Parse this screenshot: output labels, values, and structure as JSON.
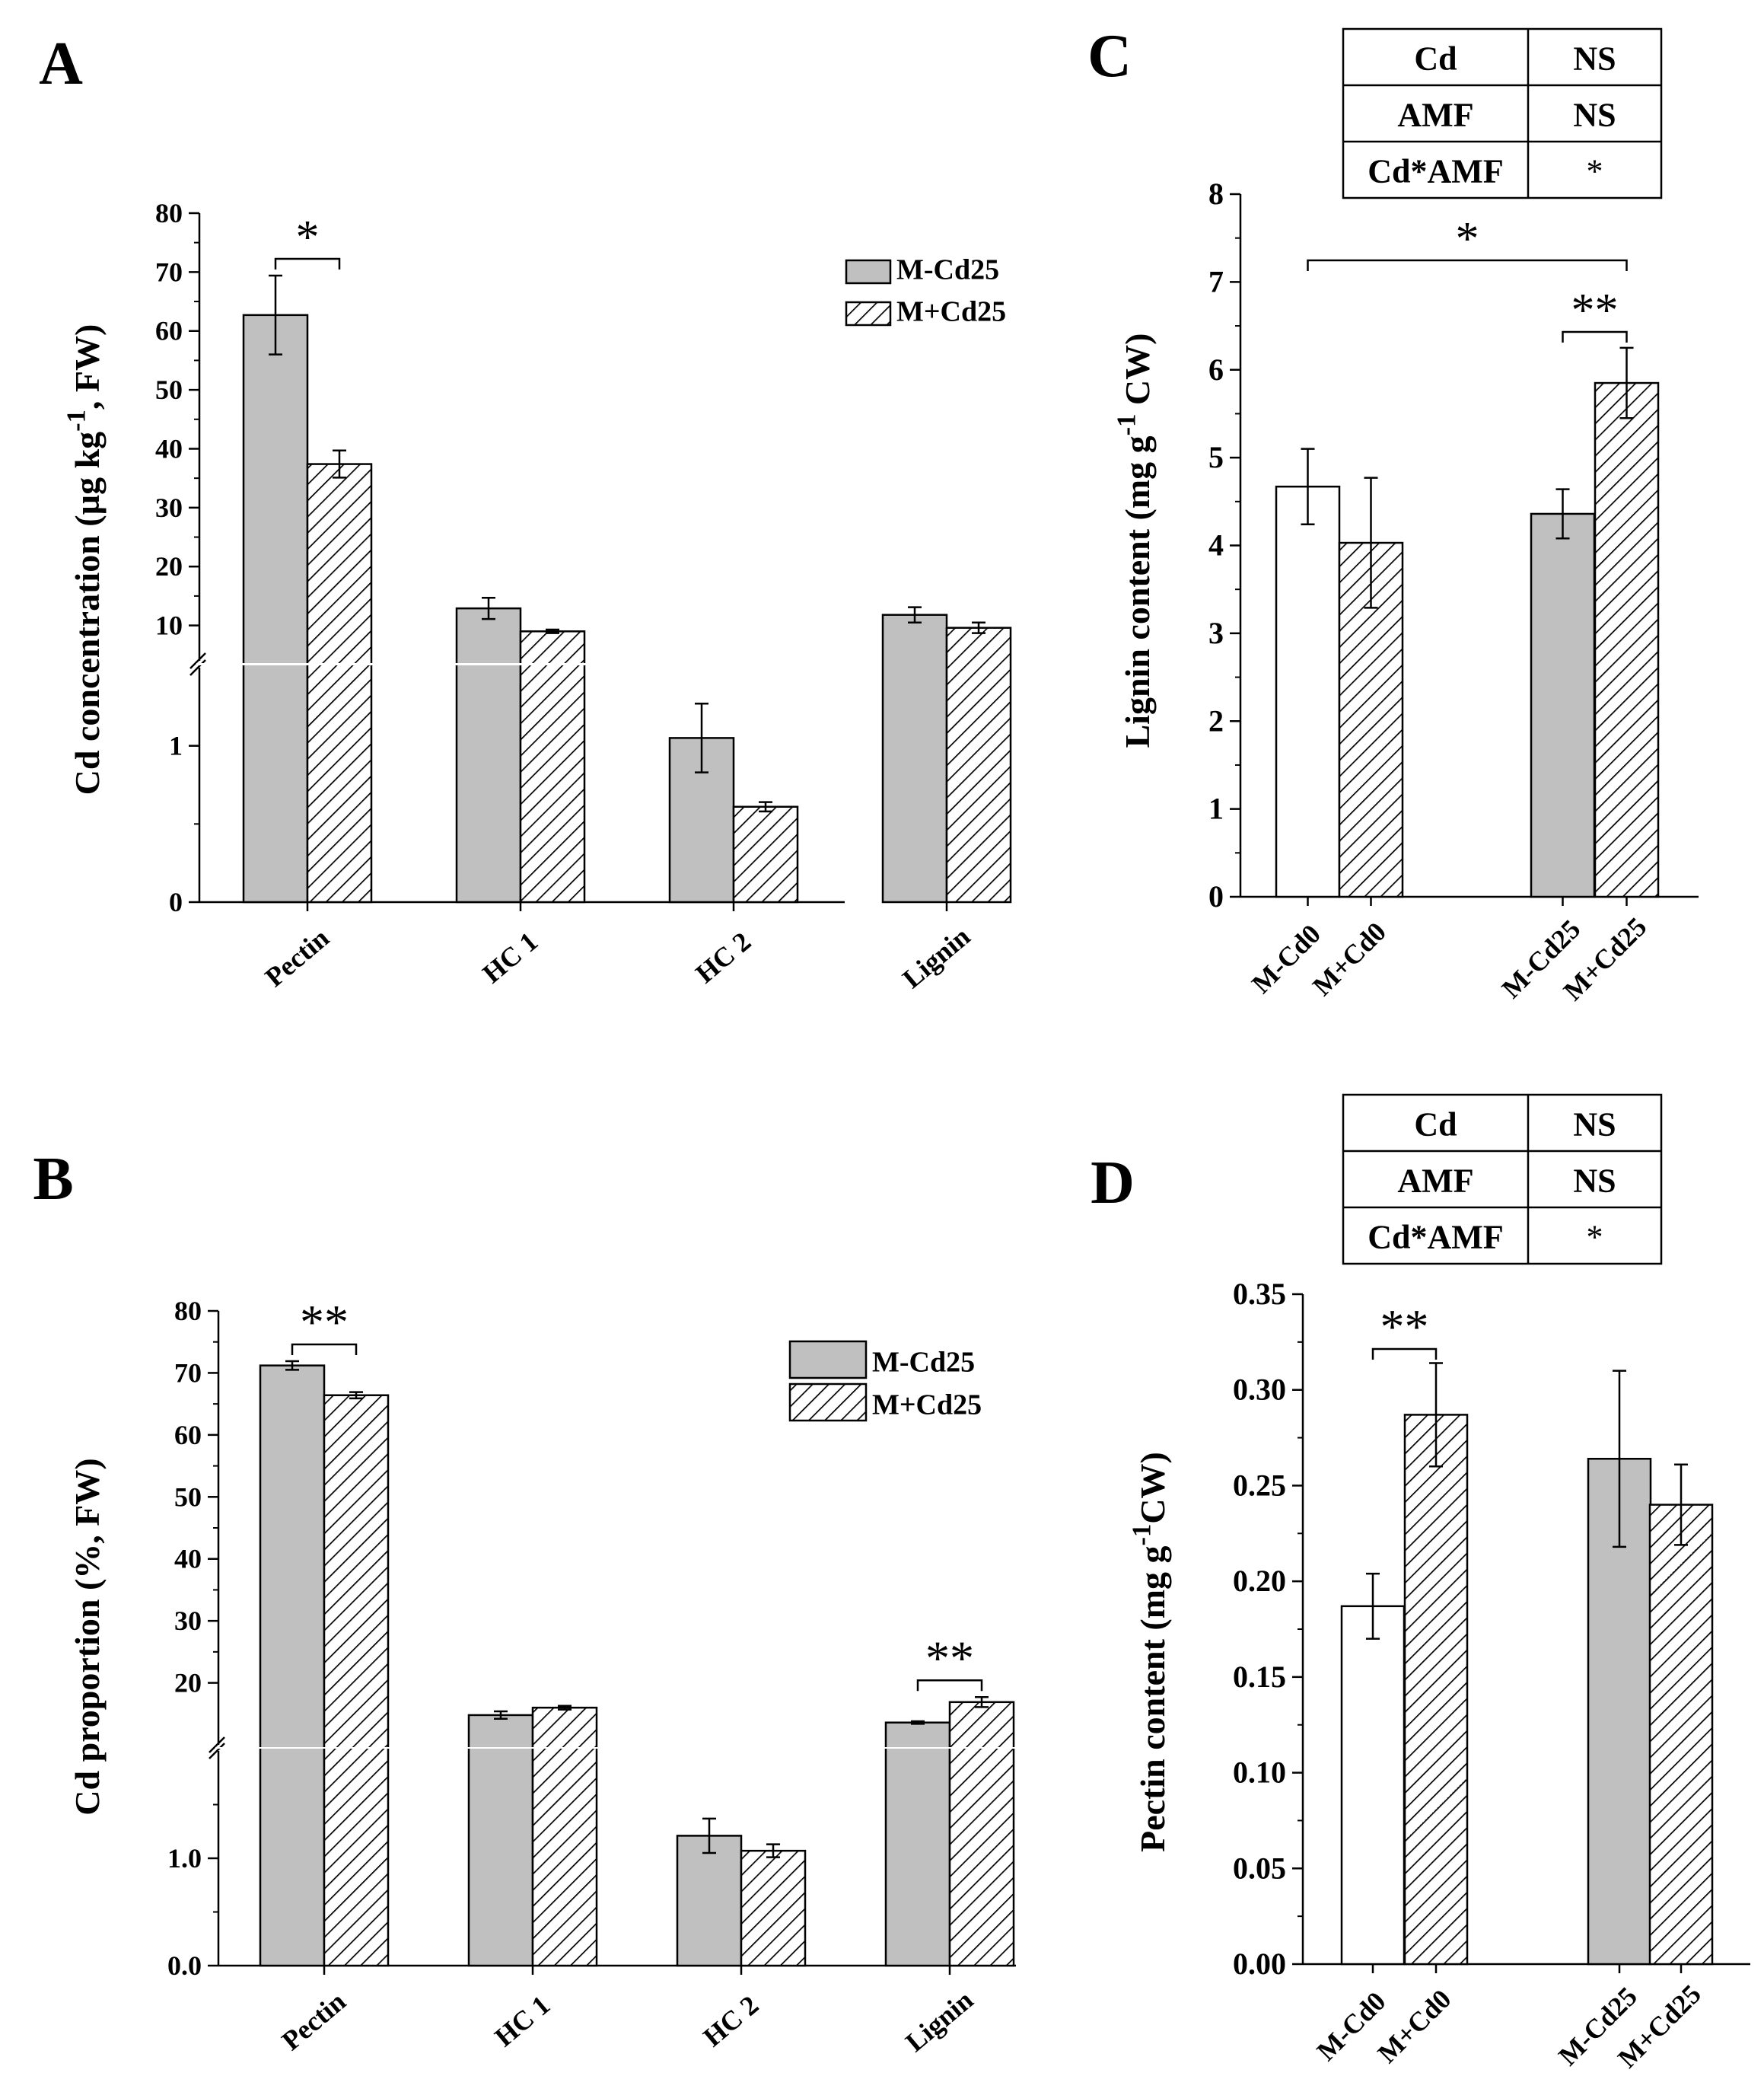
{
  "chart_data": [
    {
      "id": "A",
      "type": "bar",
      "panel_label": "A",
      "ylabel_main": "Cd concentration (µg kg",
      "ylabel_sup": "-1",
      "ylabel_end": ", FW)",
      "categories": [
        "Pectin",
        "HC 1",
        "HC 2",
        "Lignin"
      ],
      "series": [
        {
          "name": "M-Cd25",
          "pattern": "solid",
          "values": [
            62.7,
            12.9,
            1.05,
            11.8
          ],
          "errors": [
            6.7,
            1.8,
            0.22,
            1.3
          ]
        },
        {
          "name": "M+Cd25",
          "pattern": "hatch",
          "values": [
            37.4,
            9.0,
            0.61,
            9.6
          ],
          "errors": [
            2.3,
            0.3,
            0.03,
            0.9
          ]
        }
      ],
      "yaxis_break": true,
      "lower_ylim": [
        0,
        1.5
      ],
      "lower_ticks": [
        0,
        1
      ],
      "lower_tick_labels": [
        "0",
        "1"
      ],
      "upper_ylim": [
        4,
        80
      ],
      "upper_ticks": [
        10,
        20,
        30,
        40,
        50,
        60,
        70,
        80
      ],
      "upper_tick_labels": [
        "10",
        "20",
        "30",
        "40",
        "50",
        "60",
        "70",
        "80"
      ],
      "significance": [
        {
          "category": "Pectin",
          "label": "*"
        }
      ]
    },
    {
      "id": "B",
      "type": "bar",
      "panel_label": "B",
      "ylabel_main": "Cd proportion (%, FW)",
      "categories": [
        "Pectin",
        "HC 1",
        "HC 2",
        "Lignin"
      ],
      "series": [
        {
          "name": "M-Cd25",
          "pattern": "solid",
          "values": [
            71.2,
            14.8,
            1.21,
            13.6
          ],
          "errors": [
            0.7,
            0.6,
            0.16,
            0.2
          ]
        },
        {
          "name": "M+Cd25",
          "pattern": "hatch",
          "values": [
            66.4,
            16.0,
            1.07,
            16.9
          ],
          "errors": [
            0.5,
            0.3,
            0.06,
            0.8
          ]
        }
      ],
      "yaxis_break": true,
      "lower_ylim": [
        0,
        2.0
      ],
      "lower_ticks": [
        0,
        1.0
      ],
      "lower_tick_labels": [
        "0.0",
        "1.0"
      ],
      "upper_ylim": [
        10,
        80
      ],
      "upper_ticks": [
        20,
        30,
        40,
        50,
        60,
        70,
        80
      ],
      "upper_tick_labels": [
        "20",
        "30",
        "40",
        "50",
        "60",
        "70",
        "80"
      ],
      "significance": [
        {
          "category": "Pectin",
          "label": "**"
        },
        {
          "category": "Lignin",
          "label": "**"
        }
      ]
    },
    {
      "id": "C",
      "type": "bar",
      "panel_label": "C",
      "ylabel_main": "Lignin content (mg g",
      "ylabel_sup": "-1",
      "ylabel_end": " CW)",
      "categories": [
        "M-Cd0",
        "M+Cd0",
        "M-Cd25",
        "M+Cd25"
      ],
      "values": [
        4.67,
        4.03,
        4.36,
        5.85
      ],
      "errors": [
        0.43,
        0.74,
        0.28,
        0.4
      ],
      "bar_styles": [
        "white",
        "hatch",
        "gray",
        "hatch"
      ],
      "ylim": [
        0,
        8
      ],
      "yticks": [
        0,
        1,
        2,
        3,
        4,
        5,
        6,
        7,
        8
      ],
      "ytick_labels": [
        "0",
        "1",
        "2",
        "3",
        "4",
        "5",
        "6",
        "7",
        "8"
      ],
      "anova_table": [
        [
          "Cd",
          "NS"
        ],
        [
          "AMF",
          "NS"
        ],
        [
          "Cd*AMF",
          "*"
        ]
      ],
      "significance": [
        {
          "from": "M-Cd0",
          "to": "M+Cd25",
          "label": "*"
        },
        {
          "from": "M-Cd25",
          "to": "M+Cd25",
          "label": "**"
        }
      ]
    },
    {
      "id": "D",
      "type": "bar",
      "panel_label": "D",
      "ylabel_main": "Pectin content (mg g",
      "ylabel_sup": "-1",
      "ylabel_end": "CW)",
      "categories": [
        "M-Cd0",
        "M+Cd0",
        "M-Cd25",
        "M+Cd25"
      ],
      "values": [
        0.187,
        0.287,
        0.264,
        0.24
      ],
      "errors": [
        0.017,
        0.027,
        0.046,
        0.021
      ],
      "bar_styles": [
        "white",
        "hatch",
        "gray",
        "hatch"
      ],
      "ylim": [
        0,
        0.35
      ],
      "yticks": [
        0,
        0.05,
        0.1,
        0.15,
        0.2,
        0.25,
        0.3,
        0.35
      ],
      "ytick_labels": [
        "0.00",
        "0.05",
        "0.10",
        "0.15",
        "0.20",
        "0.25",
        "0.30",
        "0.35"
      ],
      "anova_table": [
        [
          "Cd",
          "NS"
        ],
        [
          "AMF",
          "NS"
        ],
        [
          "Cd*AMF",
          "*"
        ]
      ],
      "significance": [
        {
          "from": "M-Cd0",
          "to": "M+Cd0",
          "label": "**"
        }
      ]
    }
  ],
  "colors": {
    "bar_gray": "#c0c0c0",
    "bar_white": "#ffffff",
    "line": "#000000"
  }
}
